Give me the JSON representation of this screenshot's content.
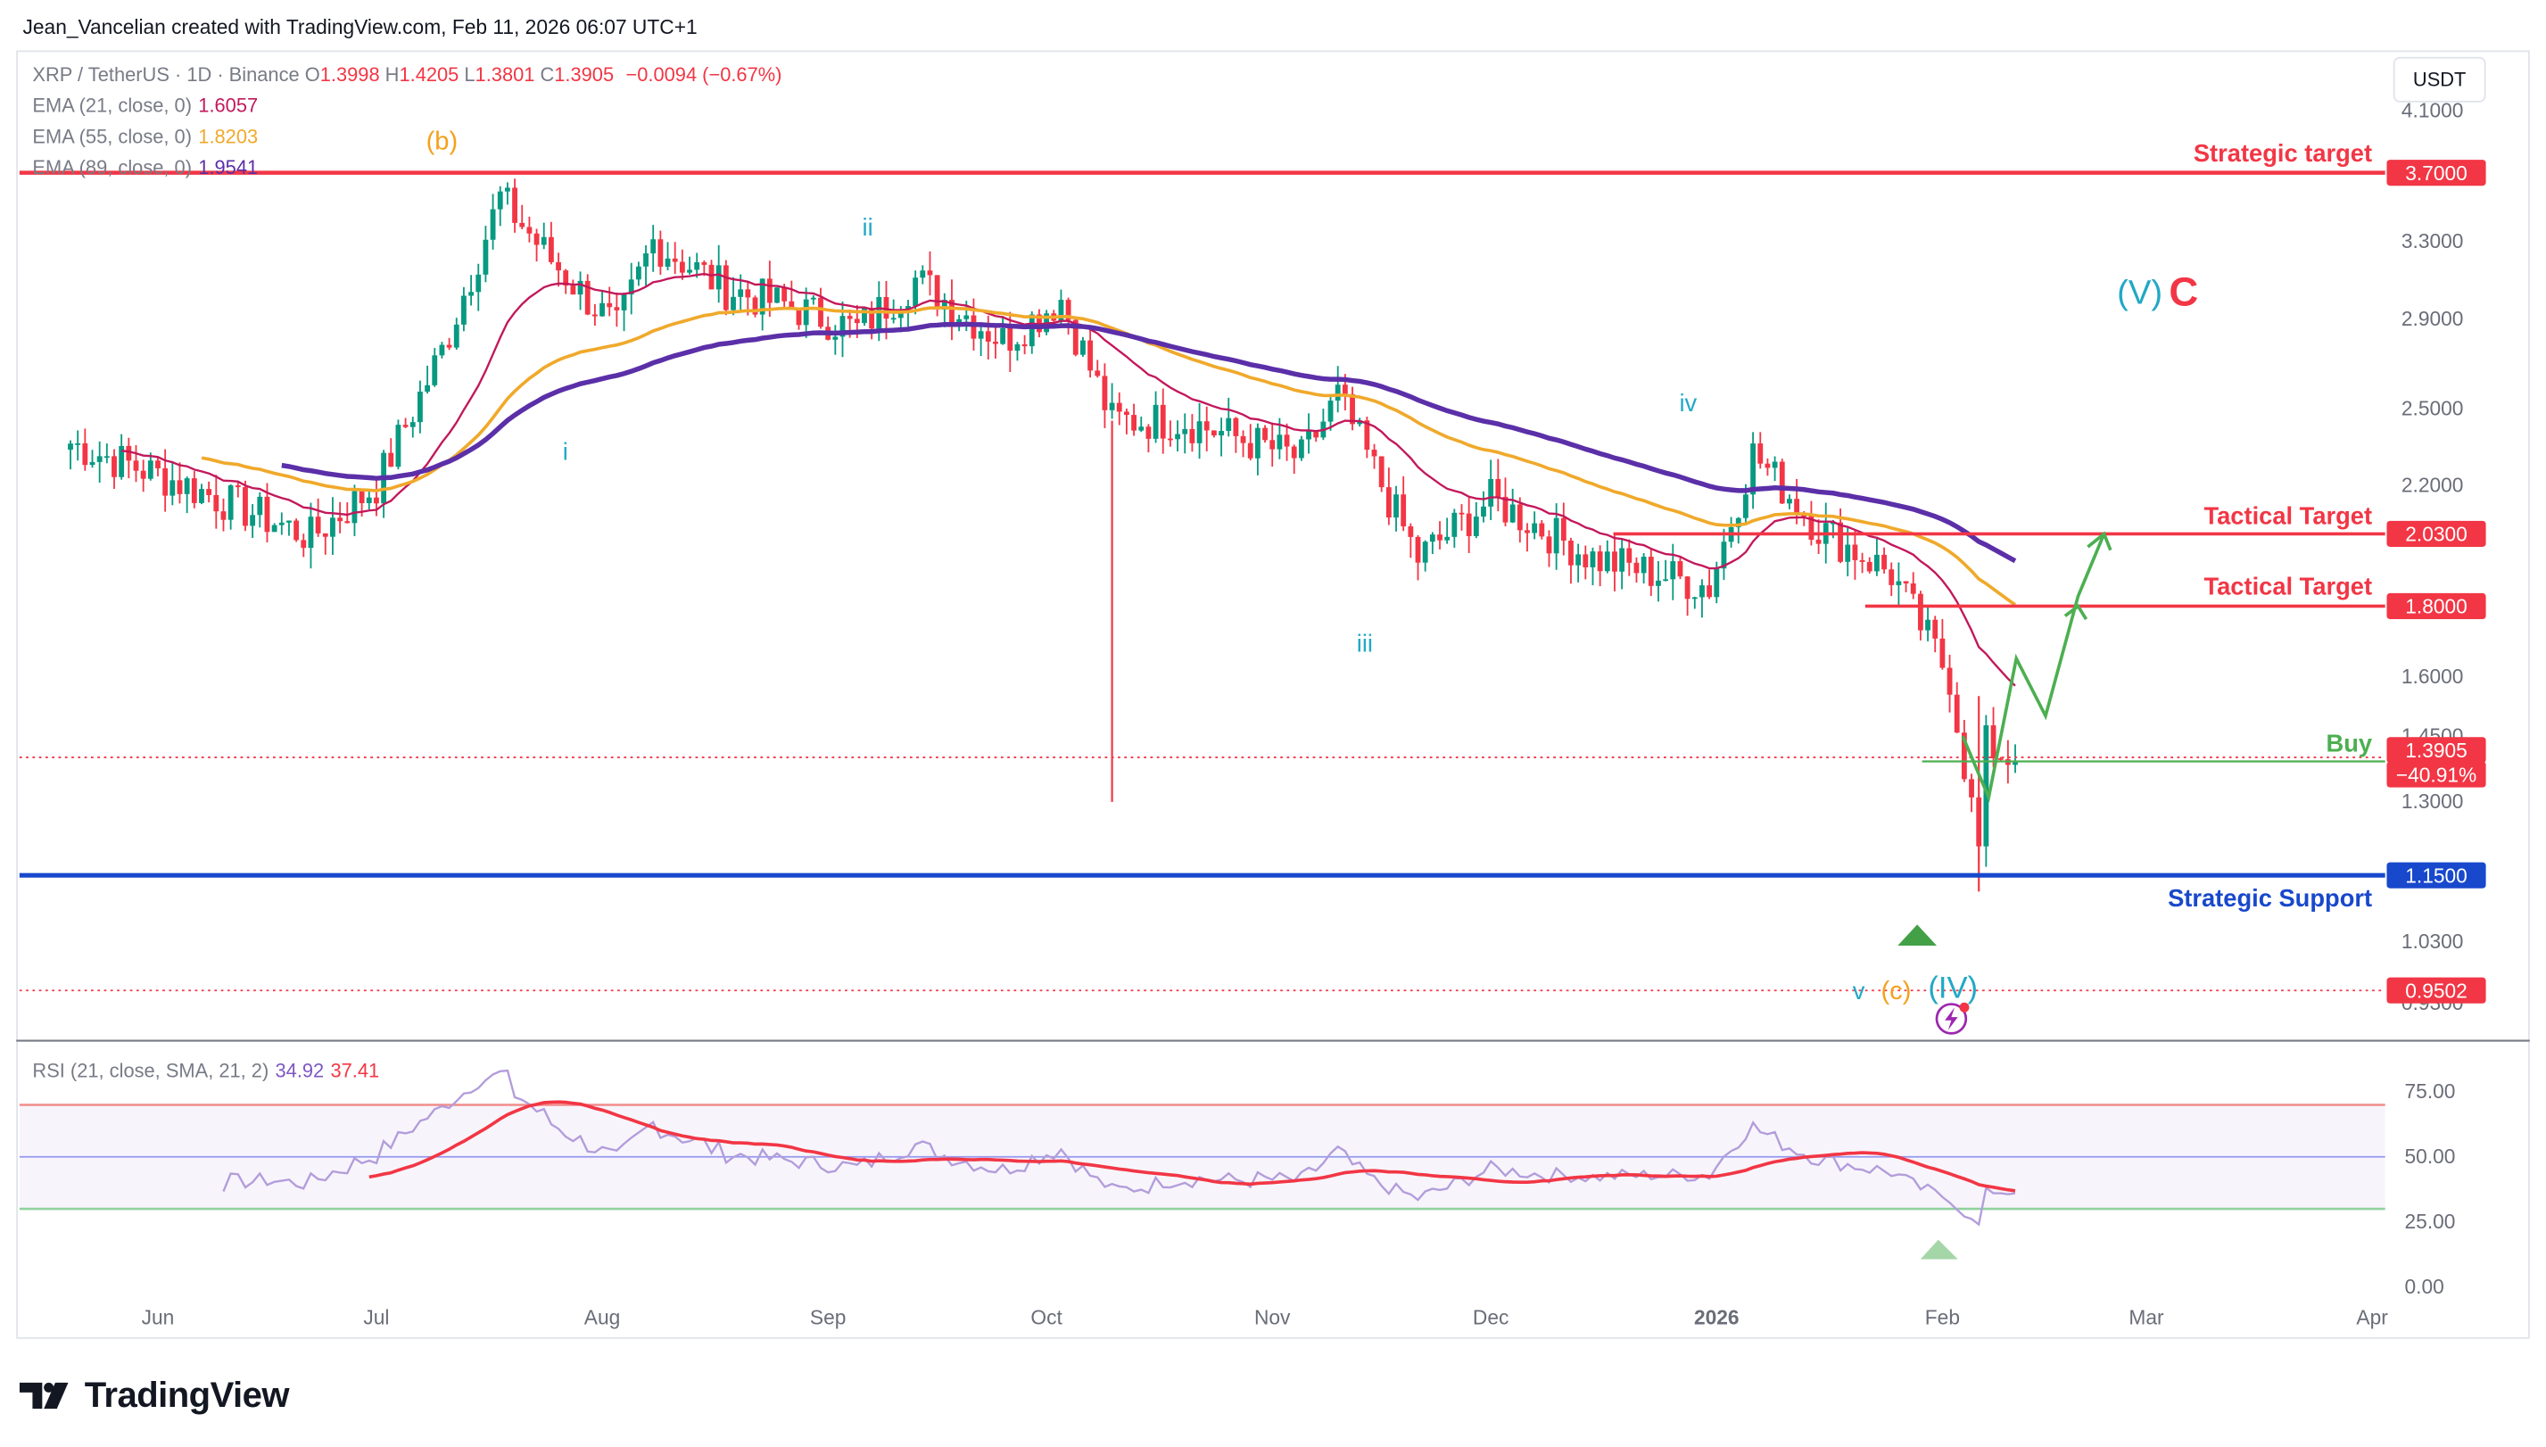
{
  "header": {
    "attribution": "Jean_Vancelian created with TradingView.com, Feb 11, 2026 06:07 UTC+1"
  },
  "symbol": {
    "name": "XRP / TetherUS · 1D · Binance",
    "ohlc": [
      {
        "label": "O",
        "value": "1.3998"
      },
      {
        "label": "H",
        "value": "1.4205"
      },
      {
        "label": "L",
        "value": "1.3801"
      },
      {
        "label": "C",
        "value": "1.3905"
      }
    ],
    "change": "−0.0094 (−0.67%)",
    "value_color": "#f23645"
  },
  "indicators": [
    {
      "label": "EMA (21, close, 0)",
      "value": "1.6057",
      "color": "#c2185b"
    },
    {
      "label": "EMA (55, close, 0)",
      "value": "1.8203",
      "color": "#f0a92b"
    },
    {
      "label": "EMA (89, close, 0)",
      "value": "1.9541",
      "color": "#5b2fa8"
    }
  ],
  "currency_button": "USDT",
  "rsi_legend": {
    "label": "RSI (21, close, SMA, 21, 2)",
    "rsi": "34.92",
    "rsi_color": "#7e57c2",
    "sma": "37.41",
    "sma_color": "#f23645"
  },
  "logo": {
    "text": "TradingView",
    "icon": "tradingview-logo-icon"
  },
  "colors": {
    "red": "#f23645",
    "green": "#089981",
    "blue": "#1848cc",
    "teal": "#22a8c6",
    "orange": "#f4a11d",
    "arrow_green": "#4caf50"
  },
  "chart_data": {
    "type": "candlestick",
    "title": "XRP / TetherUS · 1D · Binance",
    "x_tick_labels": [
      "Jun",
      "Jul",
      "Aug",
      "Sep",
      "Oct",
      "Nov",
      "Dec",
      "2026",
      "Feb",
      "Mar",
      "Apr"
    ],
    "y_tick_labels": [
      "4.1000",
      "3.3000",
      "2.9000",
      "2.5000",
      "2.2000",
      "1.6000",
      "1.4500",
      "1.3000",
      "1.0300",
      "0.9300"
    ],
    "y_scale": "log",
    "ylim": [
      0.88,
      4.45
    ],
    "series_close_approx": [
      {
        "date": "2025-05-20",
        "close": 2.36
      },
      {
        "date": "2025-06-05",
        "close": 2.2
      },
      {
        "date": "2025-06-22",
        "close": 2.02
      },
      {
        "date": "2025-07-01",
        "close": 2.2
      },
      {
        "date": "2025-07-10",
        "close": 2.75
      },
      {
        "date": "2025-07-18",
        "close": 3.55
      },
      {
        "date": "2025-07-25",
        "close": 3.2
      },
      {
        "date": "2025-08-03",
        "close": 2.85
      },
      {
        "date": "2025-08-08",
        "close": 3.3
      },
      {
        "date": "2025-08-18",
        "close": 3.05
      },
      {
        "date": "2025-08-28",
        "close": 2.95
      },
      {
        "date": "2025-09-05",
        "close": 2.85
      },
      {
        "date": "2025-09-13",
        "close": 3.1
      },
      {
        "date": "2025-09-25",
        "close": 2.8
      },
      {
        "date": "2025-10-03",
        "close": 3.0
      },
      {
        "date": "2025-10-10",
        "close": 2.45
      },
      {
        "date": "2025-10-20",
        "close": 2.45
      },
      {
        "date": "2025-11-05",
        "close": 2.3
      },
      {
        "date": "2025-11-10",
        "close": 2.55
      },
      {
        "date": "2025-11-21",
        "close": 1.95
      },
      {
        "date": "2025-12-01",
        "close": 2.15
      },
      {
        "date": "2025-12-15",
        "close": 1.95
      },
      {
        "date": "2025-12-31",
        "close": 1.86
      },
      {
        "date": "2026-01-06",
        "close": 2.32
      },
      {
        "date": "2026-01-15",
        "close": 2.05
      },
      {
        "date": "2026-01-25",
        "close": 1.9
      },
      {
        "date": "2026-02-02",
        "close": 1.6
      },
      {
        "date": "2026-02-06",
        "close": 1.2
      },
      {
        "date": "2026-02-07",
        "close": 1.43
      },
      {
        "date": "2026-02-11",
        "close": 1.3905
      }
    ],
    "ema21_last": 1.6057,
    "ema55_last": 1.8203,
    "ema89_last": 1.9541,
    "levels": [
      {
        "name": "Strategic target",
        "price": "3.7000",
        "color": "#f23645"
      },
      {
        "name": "Tactical Target",
        "price": "2.0300",
        "color": "#f23645"
      },
      {
        "name": "Tactical Target",
        "price": "1.8000",
        "color": "#f23645"
      },
      {
        "name": "Buy",
        "price": "1.3905",
        "color": "#4caf50"
      },
      {
        "name": "Strategic Support",
        "price": "1.1500",
        "color": "#1848cc"
      }
    ],
    "price_tags": [
      {
        "text": "3.7000",
        "bg": "#f23645"
      },
      {
        "text": "2.0300",
        "bg": "#f23645"
      },
      {
        "text": "1.8000",
        "bg": "#f23645"
      },
      {
        "text": "1.3905",
        "bg": "#f23645"
      },
      {
        "text": "−40.91%",
        "bg": "#f23645"
      },
      {
        "text": "1.1500",
        "bg": "#1848cc"
      },
      {
        "text": "0.9502",
        "bg": "#f23645"
      }
    ],
    "wave_labels": [
      {
        "text": "(b)",
        "color": "#f4a11d"
      },
      {
        "text": "i",
        "color": "#22a8c6"
      },
      {
        "text": "ii",
        "color": "#22a8c6"
      },
      {
        "text": "iii",
        "color": "#22a8c6"
      },
      {
        "text": "iv",
        "color": "#22a8c6"
      },
      {
        "text": "v",
        "color": "#22a8c6"
      },
      {
        "text": "(c)",
        "color": "#f4a11d"
      },
      {
        "text": "(IV)",
        "color": "#22a8c6"
      },
      {
        "text": "(V)",
        "color": "#22a8c6"
      },
      {
        "text": "C",
        "color": "#f23645"
      }
    ],
    "projection_path": [
      1.45,
      1.31,
      1.65,
      1.5,
      1.83,
      2.03
    ],
    "rsi": {
      "y_tick_labels": [
        "75.00",
        "50.00",
        "25.00",
        "0.00"
      ],
      "overbought": 70,
      "oversold": 30,
      "mid": 50,
      "rsi_last": 34.92,
      "sma_last": 37.41
    }
  }
}
